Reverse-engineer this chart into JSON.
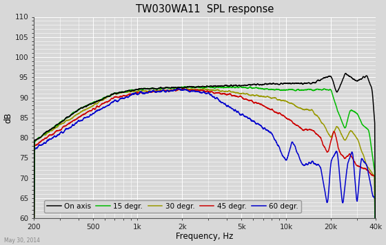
{
  "title": "TW030WA11  SPL response",
  "ylabel": "dB",
  "xlabel": "Frequency, Hz",
  "watermark": "May 30, 2014",
  "ylim": [
    60,
    110
  ],
  "yticks": [
    60,
    65,
    70,
    75,
    80,
    85,
    90,
    95,
    100,
    105,
    110
  ],
  "freq_min": 200,
  "freq_max": 40000,
  "xtick_labels": [
    "200",
    "500",
    "1k",
    "2k",
    "5k",
    "10k",
    "20k",
    "40k"
  ],
  "xtick_values": [
    200,
    500,
    1000,
    2000,
    5000,
    10000,
    20000,
    40000
  ],
  "bg_color": "#d8d8d8",
  "grid_color": "#ffffff",
  "series": [
    {
      "label": "On axis",
      "color": "#000000"
    },
    {
      "label": "15 degr.",
      "color": "#00bb00"
    },
    {
      "label": "30 degr.",
      "color": "#999900"
    },
    {
      "label": "45 degr.",
      "color": "#cc0000"
    },
    {
      "label": "60 degr.",
      "color": "#0000cc"
    }
  ]
}
